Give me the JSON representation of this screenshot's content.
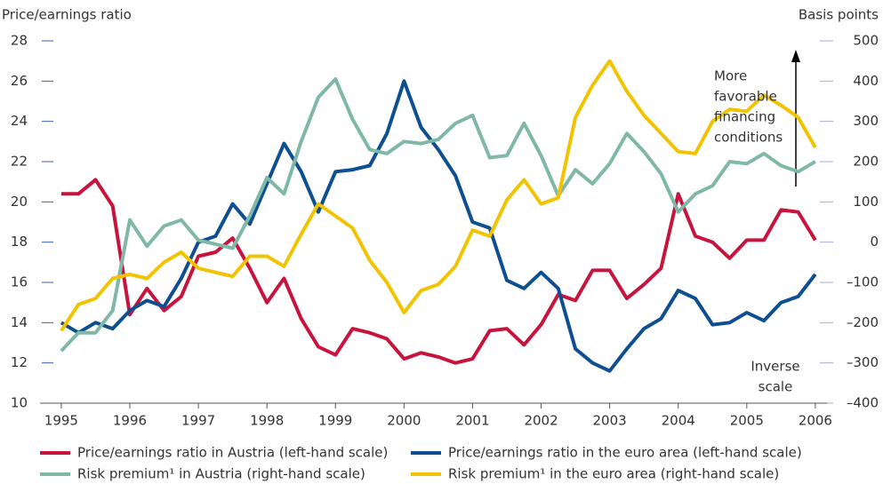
{
  "chart_data": {
    "type": "line",
    "y_label": "Price/earnings ratio",
    "y2_label": "Basis points",
    "x": [
      1995,
      1995.25,
      1995.5,
      1995.75,
      1996,
      1996.25,
      1996.5,
      1996.75,
      1997,
      1997.25,
      1997.5,
      1997.75,
      1998,
      1998.25,
      1998.5,
      1998.75,
      1999,
      1999.25,
      1999.5,
      1999.75,
      2000,
      2000.25,
      2000.5,
      2000.75,
      2001,
      2001.25,
      2001.5,
      2001.75,
      2002,
      2002.25,
      2002.5,
      2002.75,
      2003,
      2003.25,
      2003.5,
      2003.75,
      2004,
      2004.25,
      2004.5,
      2004.75,
      2005,
      2005.25,
      2005.5,
      2005.75,
      2006
    ],
    "xlim": [
      1994.69,
      2006.17
    ],
    "xticks": [
      1995,
      1996,
      1997,
      1998,
      1999,
      2000,
      2001,
      2002,
      2003,
      2004,
      2005,
      2006
    ],
    "ylim": [
      10,
      28
    ],
    "yticks": [
      10,
      12,
      14,
      16,
      18,
      20,
      22,
      24,
      26,
      28
    ],
    "y2lim": [
      -400,
      500
    ],
    "y2ticks": [
      {
        "value": -400,
        "label": "–400"
      },
      {
        "value": -300,
        "label": "–300"
      },
      {
        "value": -200,
        "label": "–200"
      },
      {
        "value": -100,
        "label": "–100"
      },
      0,
      100,
      200,
      300,
      400,
      500
    ],
    "legend": "bottom",
    "series": [
      {
        "name": "Price/earnings ratio in Austria (left-hand scale)",
        "color": "#c8143c",
        "axis": "y",
        "values": [
          20.4,
          20.4,
          21.1,
          19.8,
          14.4,
          15.7,
          14.6,
          15.3,
          17.3,
          17.5,
          18.2,
          16.7,
          15.0,
          16.2,
          14.2,
          12.8,
          12.4,
          13.7,
          13.5,
          13.2,
          12.2,
          12.5,
          12.3,
          12.0,
          12.2,
          13.6,
          13.7,
          12.9,
          13.9,
          15.4,
          15.1,
          16.6,
          16.6,
          15.2,
          15.9,
          16.7,
          20.4,
          18.3,
          18.0,
          17.2,
          18.1,
          18.1,
          19.6,
          19.5,
          18.1
        ]
      },
      {
        "name": "Price/earnings ratio in the euro area (left-hand scale)",
        "color": "#0d4f91",
        "axis": "y",
        "values": [
          14.0,
          13.5,
          14.0,
          13.7,
          14.6,
          15.1,
          14.8,
          16.2,
          18.0,
          18.3,
          19.9,
          18.9,
          20.9,
          22.9,
          21.5,
          19.5,
          21.5,
          21.6,
          21.8,
          23.4,
          26.0,
          23.7,
          22.6,
          21.3,
          19.0,
          18.7,
          16.1,
          15.7,
          16.5,
          15.7,
          12.7,
          12.0,
          11.6,
          12.7,
          13.7,
          14.2,
          15.6,
          15.2,
          13.9,
          14.0,
          14.5,
          14.1,
          15.0,
          15.3,
          16.4
        ]
      },
      {
        "name": "Risk premium¹ in Austria (right-hand scale)",
        "color": "#80b8a8",
        "axis": "y2",
        "values": [
          -270,
          -225,
          -225,
          -170,
          55,
          -10,
          40,
          55,
          5,
          -5,
          -15,
          65,
          160,
          120,
          250,
          360,
          405,
          305,
          230,
          220,
          250,
          245,
          255,
          295,
          315,
          210,
          215,
          295,
          215,
          115,
          180,
          145,
          195,
          270,
          225,
          170,
          75,
          120,
          140,
          200,
          195,
          220,
          190,
          175,
          200
        ]
      },
      {
        "name": "Risk premium¹ in the euro area (right-hand scale)",
        "color": "#f2c300",
        "axis": "y2",
        "values": [
          -220,
          -155,
          -140,
          -90,
          -80,
          -90,
          -50,
          -25,
          -65,
          -75,
          -85,
          -35,
          -35,
          -60,
          20,
          95,
          65,
          35,
          -45,
          -100,
          -175,
          -120,
          -105,
          -60,
          30,
          15,
          105,
          155,
          95,
          110,
          310,
          390,
          450,
          375,
          315,
          270,
          225,
          220,
          300,
          330,
          325,
          365,
          340,
          310,
          235
        ]
      }
    ],
    "annotations": [
      {
        "lines": [
          "More",
          "favorable",
          "financing",
          "conditions"
        ]
      },
      {
        "lines": [
          "Inverse",
          "scale"
        ]
      }
    ]
  }
}
